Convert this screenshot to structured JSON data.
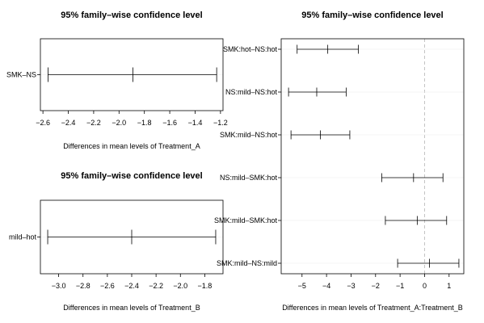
{
  "chart_data": [
    {
      "type": "errorbar",
      "title": "95% family–wise confidence level",
      "xlabel": "Differences in mean levels of Treatment_A",
      "xlim": [
        -2.62,
        -1.18
      ],
      "xticks": [
        -2.6,
        -2.4,
        -2.2,
        -2.0,
        -1.8,
        -1.6,
        -1.4,
        -1.2
      ],
      "xtick_labels": [
        "−2.6",
        "−2.4",
        "−2.2",
        "−2.0",
        "−1.8",
        "−1.6",
        "−1.4",
        "−1.2"
      ],
      "zero_line": false,
      "comparisons": [
        {
          "label": "SMK–NS",
          "lwr": -2.56,
          "est": -1.89,
          "upr": -1.23
        }
      ]
    },
    {
      "type": "errorbar",
      "title": "95% family–wise confidence level",
      "xlabel": "Differences in mean levels of Treatment_B",
      "xlim": [
        -3.15,
        -1.65
      ],
      "xticks": [
        -3.0,
        -2.8,
        -2.6,
        -2.4,
        -2.2,
        -2.0,
        -1.8
      ],
      "xtick_labels": [
        "−3.0",
        "−2.8",
        "−2.6",
        "−2.4",
        "−2.2",
        "−2.0",
        "−1.8"
      ],
      "zero_line": false,
      "comparisons": [
        {
          "label": "mild–hot",
          "lwr": -3.09,
          "est": -2.4,
          "upr": -1.71
        }
      ]
    },
    {
      "type": "errorbar",
      "title": "95% family–wise confidence level",
      "xlabel": "Differences in mean levels of Treatment_A:Treatment_B",
      "xlim": [
        -5.85,
        1.6
      ],
      "xticks": [
        -5,
        -4,
        -3,
        -2,
        -1,
        0,
        1
      ],
      "xtick_labels": [
        "−5",
        "−4",
        "−3",
        "−2",
        "−1",
        "0",
        "1"
      ],
      "zero_line": true,
      "comparisons": [
        {
          "label": "SMK:hot–NS:hot",
          "lwr": -5.2,
          "est": -3.95,
          "upr": -2.7
        },
        {
          "label": "NS:mild–NS:hot",
          "lwr": -5.55,
          "est": -4.4,
          "upr": -3.2
        },
        {
          "label": "SMK:mild–NS:hot",
          "lwr": -5.45,
          "est": -4.25,
          "upr": -3.05
        },
        {
          "label": "NS:mild–SMK:hot",
          "lwr": -1.75,
          "est": -0.45,
          "upr": 0.75
        },
        {
          "label": "SMK:mild–SMK:hot",
          "lwr": -1.6,
          "est": -0.3,
          "upr": 0.9
        },
        {
          "label": "SMK:mild–NS:mild",
          "lwr": -1.1,
          "est": 0.2,
          "upr": 1.4
        }
      ]
    }
  ]
}
